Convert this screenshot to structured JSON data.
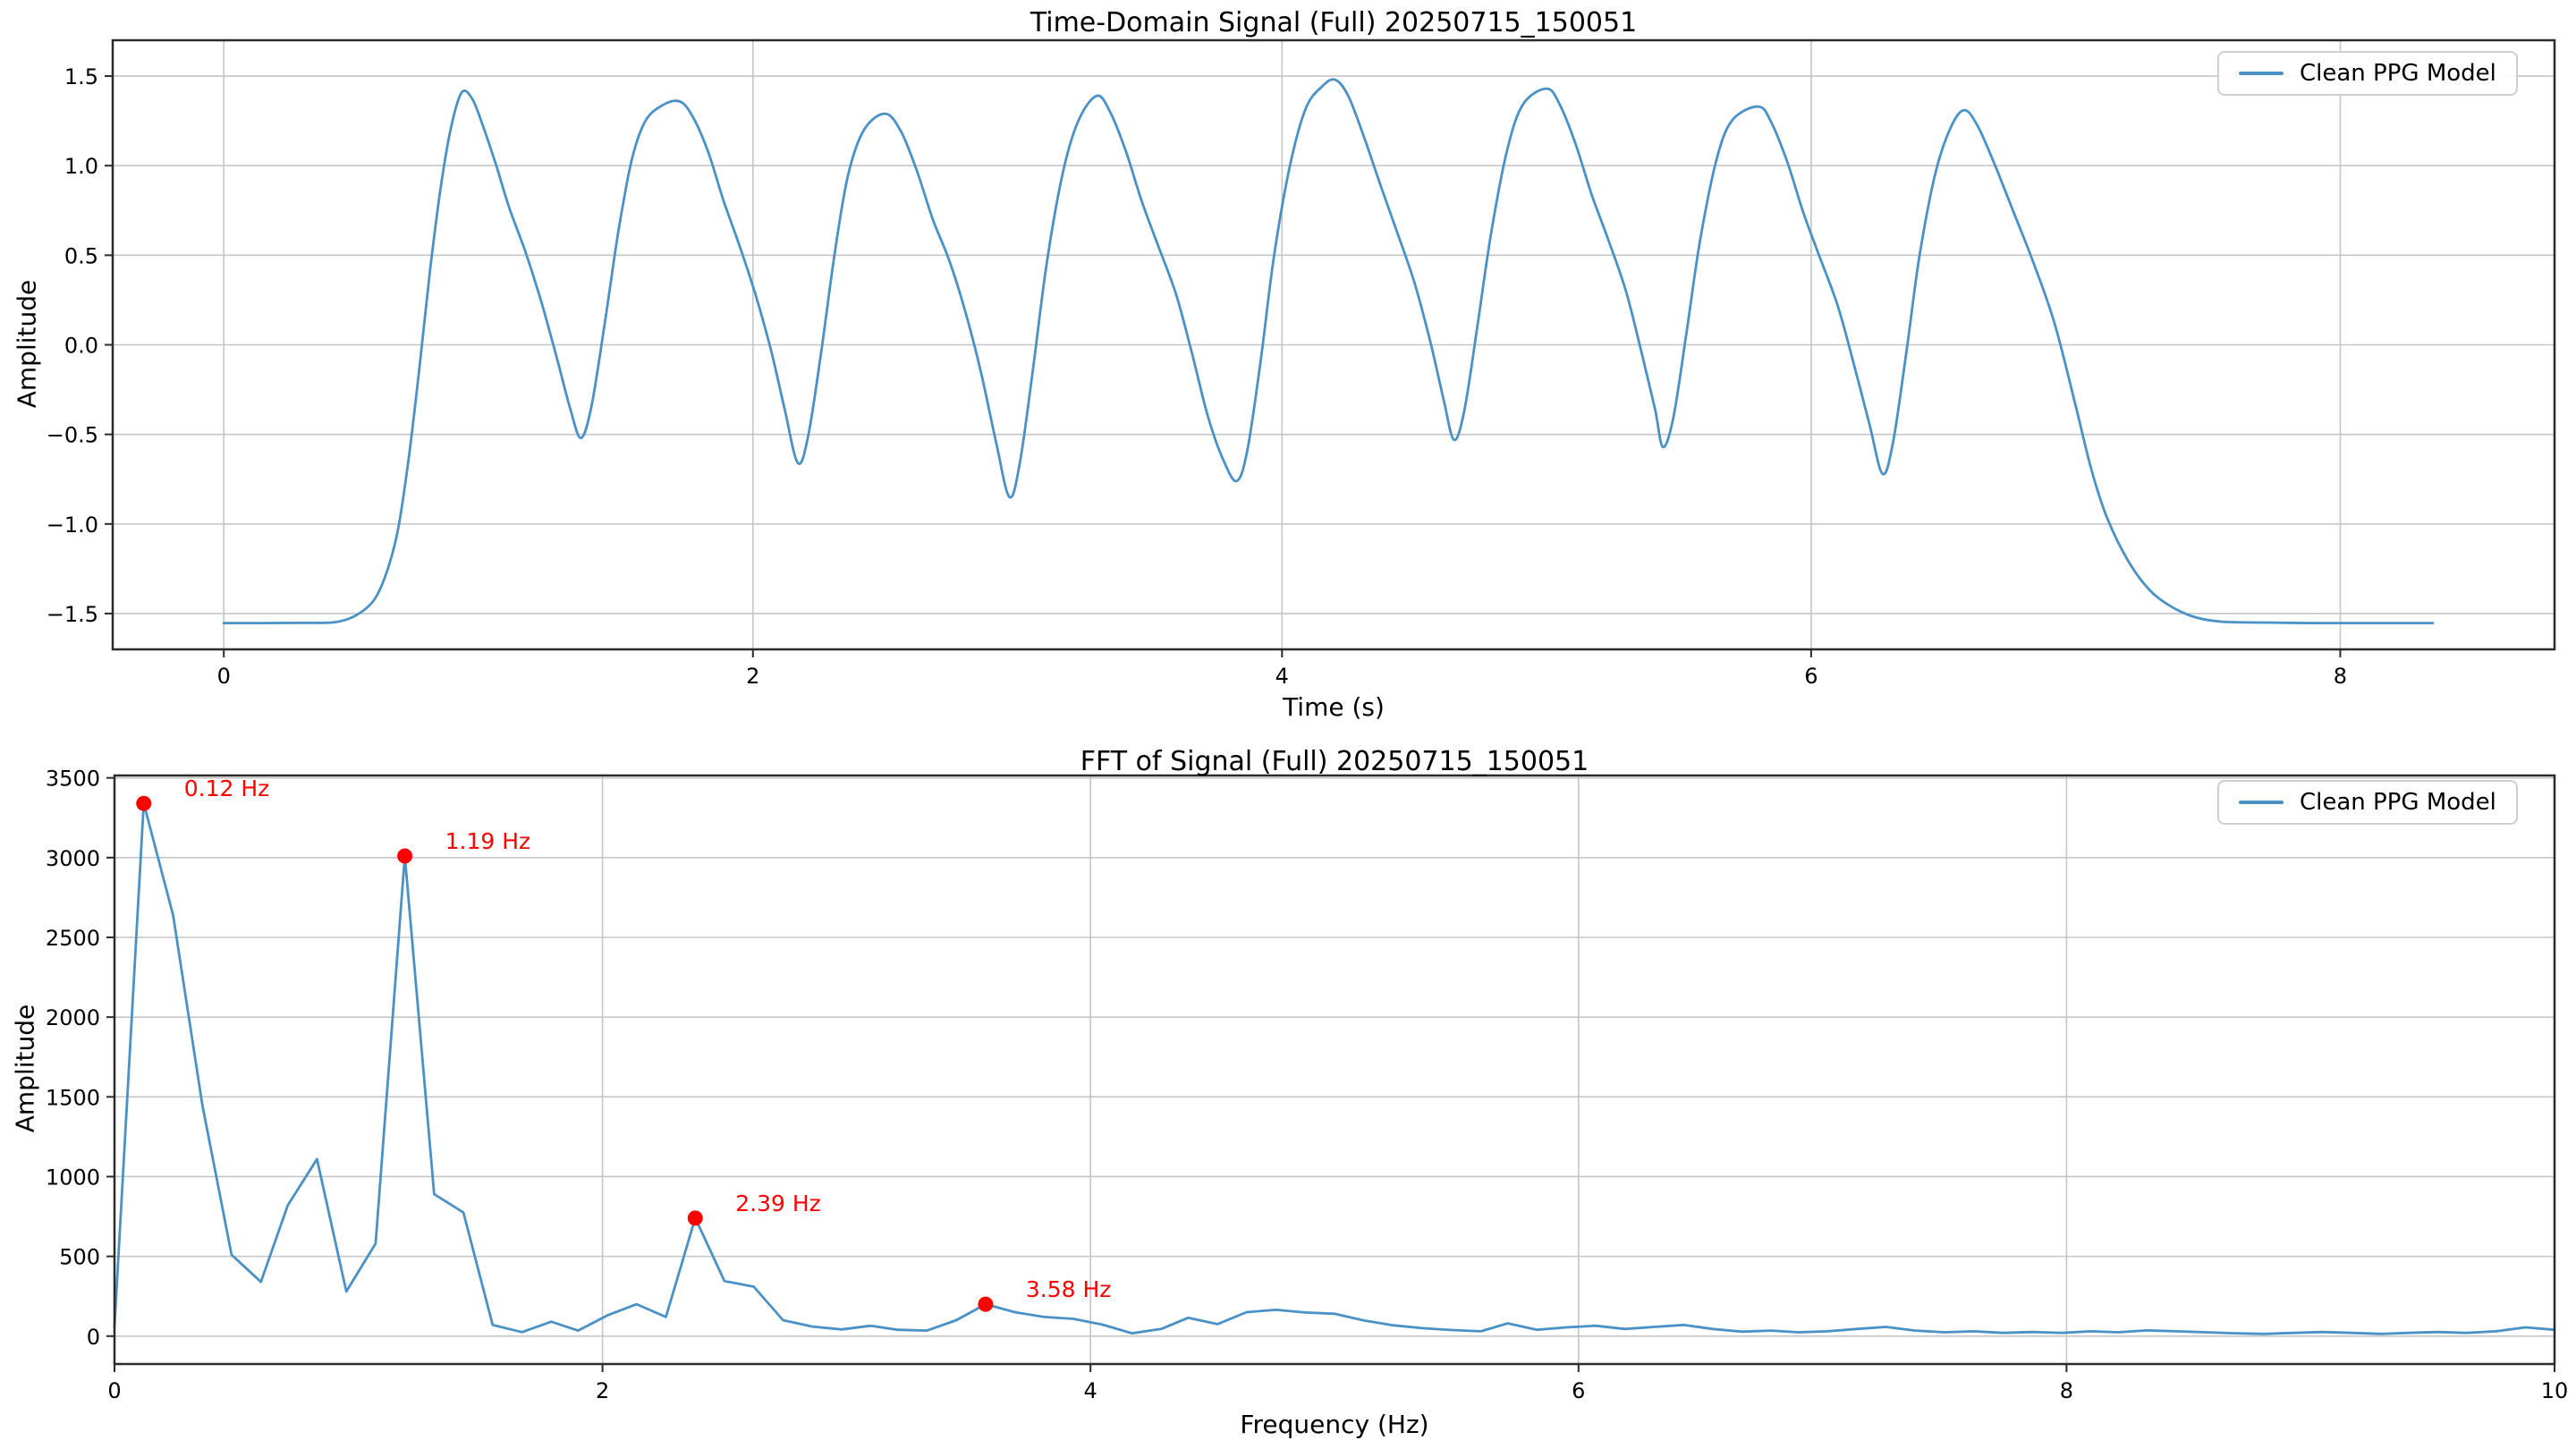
{
  "figure": {
    "background": "#ffffff",
    "line_color": "#4a91c6",
    "grid_color": "#c6c6c6",
    "spine_color": "#2b2b2b",
    "text_color": "#000000",
    "annotation_color": "#ff0000",
    "tick_fontsize": 24,
    "legend_label": "Clean PPG Model"
  },
  "chart_data": [
    {
      "type": "line",
      "title": "Time-Domain Signal (Full) 20250715_150051",
      "xlabel": "Time (s)",
      "ylabel": "Amplitude",
      "legend": [
        "Clean PPG Model"
      ],
      "legend_position": "upper right",
      "grid": true,
      "smooth": true,
      "xlim": [
        -0.42,
        8.81
      ],
      "ylim": [
        -1.7,
        1.7
      ],
      "xticks": {
        "values": [
          0,
          2,
          4,
          6,
          8
        ],
        "labels": [
          "0",
          "2",
          "4",
          "6",
          "8"
        ]
      },
      "yticks": {
        "values": [
          -1.5,
          -1.0,
          -0.5,
          0.0,
          0.5,
          1.0,
          1.5
        ],
        "labels": [
          "−1.5",
          "−1.0",
          "−0.5",
          "0.0",
          "0.5",
          "1.0",
          "1.5"
        ]
      },
      "points": [
        [
          0.0,
          -1.553
        ],
        [
          0.15,
          -1.553
        ],
        [
          0.3,
          -1.552
        ],
        [
          0.42,
          -1.548
        ],
        [
          0.5,
          -1.51
        ],
        [
          0.57,
          -1.42
        ],
        [
          0.62,
          -1.25
        ],
        [
          0.66,
          -1.02
        ],
        [
          0.7,
          -0.62
        ],
        [
          0.74,
          -0.12
        ],
        [
          0.78,
          0.42
        ],
        [
          0.82,
          0.88
        ],
        [
          0.86,
          1.22
        ],
        [
          0.9,
          1.41
        ],
        [
          0.94,
          1.37
        ],
        [
          0.98,
          1.22
        ],
        [
          1.03,
          1.0
        ],
        [
          1.08,
          0.76
        ],
        [
          1.14,
          0.52
        ],
        [
          1.2,
          0.24
        ],
        [
          1.26,
          -0.08
        ],
        [
          1.31,
          -0.36
        ],
        [
          1.35,
          -0.52
        ],
        [
          1.39,
          -0.34
        ],
        [
          1.44,
          0.12
        ],
        [
          1.49,
          0.62
        ],
        [
          1.54,
          1.02
        ],
        [
          1.59,
          1.24
        ],
        [
          1.65,
          1.33
        ],
        [
          1.72,
          1.36
        ],
        [
          1.77,
          1.28
        ],
        [
          1.83,
          1.08
        ],
        [
          1.89,
          0.8
        ],
        [
          1.95,
          0.55
        ],
        [
          2.01,
          0.28
        ],
        [
          2.07,
          -0.04
        ],
        [
          2.12,
          -0.36
        ],
        [
          2.17,
          -0.66
        ],
        [
          2.21,
          -0.5
        ],
        [
          2.26,
          -0.02
        ],
        [
          2.31,
          0.52
        ],
        [
          2.36,
          0.95
        ],
        [
          2.42,
          1.2
        ],
        [
          2.5,
          1.29
        ],
        [
          2.56,
          1.19
        ],
        [
          2.62,
          0.97
        ],
        [
          2.68,
          0.7
        ],
        [
          2.74,
          0.48
        ],
        [
          2.8,
          0.2
        ],
        [
          2.86,
          -0.14
        ],
        [
          2.92,
          -0.55
        ],
        [
          2.97,
          -0.85
        ],
        [
          3.01,
          -0.65
        ],
        [
          3.06,
          -0.12
        ],
        [
          3.11,
          0.45
        ],
        [
          3.17,
          0.95
        ],
        [
          3.23,
          1.25
        ],
        [
          3.3,
          1.39
        ],
        [
          3.35,
          1.3
        ],
        [
          3.41,
          1.08
        ],
        [
          3.47,
          0.8
        ],
        [
          3.53,
          0.56
        ],
        [
          3.6,
          0.28
        ],
        [
          3.66,
          -0.05
        ],
        [
          3.72,
          -0.4
        ],
        [
          3.78,
          -0.65
        ],
        [
          3.83,
          -0.76
        ],
        [
          3.87,
          -0.58
        ],
        [
          3.92,
          -0.08
        ],
        [
          3.97,
          0.5
        ],
        [
          4.03,
          1.0
        ],
        [
          4.09,
          1.32
        ],
        [
          4.15,
          1.44
        ],
        [
          4.2,
          1.48
        ],
        [
          4.25,
          1.39
        ],
        [
          4.31,
          1.16
        ],
        [
          4.37,
          0.9
        ],
        [
          4.43,
          0.65
        ],
        [
          4.5,
          0.35
        ],
        [
          4.56,
          0.02
        ],
        [
          4.61,
          -0.3
        ],
        [
          4.65,
          -0.53
        ],
        [
          4.69,
          -0.36
        ],
        [
          4.74,
          0.12
        ],
        [
          4.79,
          0.62
        ],
        [
          4.85,
          1.08
        ],
        [
          4.91,
          1.34
        ],
        [
          5.0,
          1.43
        ],
        [
          5.05,
          1.34
        ],
        [
          5.11,
          1.12
        ],
        [
          5.17,
          0.84
        ],
        [
          5.23,
          0.6
        ],
        [
          5.3,
          0.3
        ],
        [
          5.36,
          -0.05
        ],
        [
          5.41,
          -0.36
        ],
        [
          5.44,
          -0.57
        ],
        [
          5.48,
          -0.4
        ],
        [
          5.53,
          0.08
        ],
        [
          5.58,
          0.58
        ],
        [
          5.64,
          1.02
        ],
        [
          5.7,
          1.25
        ],
        [
          5.8,
          1.33
        ],
        [
          5.85,
          1.24
        ],
        [
          5.91,
          1.02
        ],
        [
          5.97,
          0.74
        ],
        [
          6.03,
          0.5
        ],
        [
          6.1,
          0.22
        ],
        [
          6.16,
          -0.1
        ],
        [
          6.22,
          -0.44
        ],
        [
          6.27,
          -0.72
        ],
        [
          6.31,
          -0.54
        ],
        [
          6.36,
          -0.04
        ],
        [
          6.41,
          0.5
        ],
        [
          6.47,
          0.96
        ],
        [
          6.53,
          1.22
        ],
        [
          6.58,
          1.31
        ],
        [
          6.63,
          1.22
        ],
        [
          6.69,
          1.02
        ],
        [
          6.76,
          0.76
        ],
        [
          6.84,
          0.46
        ],
        [
          6.92,
          0.12
        ],
        [
          7.0,
          -0.34
        ],
        [
          7.06,
          -0.7
        ],
        [
          7.12,
          -0.97
        ],
        [
          7.2,
          -1.21
        ],
        [
          7.28,
          -1.37
        ],
        [
          7.36,
          -1.46
        ],
        [
          7.45,
          -1.52
        ],
        [
          7.55,
          -1.545
        ],
        [
          7.7,
          -1.55
        ],
        [
          7.9,
          -1.553
        ],
        [
          8.1,
          -1.553
        ],
        [
          8.35,
          -1.553
        ]
      ],
      "annotations": []
    },
    {
      "type": "line",
      "title": "FFT of Signal (Full) 20250715_150051",
      "xlabel": "Frequency (Hz)",
      "ylabel": "Amplitude",
      "legend": [
        "Clean PPG Model"
      ],
      "legend_position": "upper right",
      "grid": true,
      "smooth": false,
      "xlim": [
        0,
        10
      ],
      "ylim": [
        -175,
        3515
      ],
      "xticks": {
        "values": [
          0,
          2,
          4,
          6,
          8,
          10
        ],
        "labels": [
          "0",
          "2",
          "4",
          "6",
          "8",
          "10"
        ]
      },
      "yticks": {
        "values": [
          0,
          500,
          1000,
          1500,
          2000,
          2500,
          3000,
          3500
        ],
        "labels": [
          "0",
          "500",
          "1000",
          "1500",
          "2000",
          "2500",
          "3000",
          "3500"
        ]
      },
      "points": [
        [
          0.0,
          60
        ],
        [
          0.12,
          3340
        ],
        [
          0.24,
          2640
        ],
        [
          0.36,
          1450
        ],
        [
          0.48,
          510
        ],
        [
          0.6,
          340
        ],
        [
          0.71,
          820
        ],
        [
          0.83,
          1110
        ],
        [
          0.95,
          280
        ],
        [
          1.07,
          580
        ],
        [
          1.19,
          3010
        ],
        [
          1.31,
          890
        ],
        [
          1.43,
          775
        ],
        [
          1.55,
          70
        ],
        [
          1.67,
          25
        ],
        [
          1.79,
          90
        ],
        [
          1.9,
          35
        ],
        [
          2.02,
          130
        ],
        [
          2.14,
          200
        ],
        [
          2.26,
          120
        ],
        [
          2.38,
          740
        ],
        [
          2.5,
          345
        ],
        [
          2.62,
          310
        ],
        [
          2.74,
          100
        ],
        [
          2.86,
          60
        ],
        [
          2.98,
          42
        ],
        [
          3.1,
          65
        ],
        [
          3.21,
          40
        ],
        [
          3.33,
          35
        ],
        [
          3.45,
          100
        ],
        [
          3.57,
          200
        ],
        [
          3.69,
          150
        ],
        [
          3.81,
          120
        ],
        [
          3.93,
          108
        ],
        [
          4.05,
          72
        ],
        [
          4.17,
          18
        ],
        [
          4.29,
          45
        ],
        [
          4.4,
          115
        ],
        [
          4.52,
          75
        ],
        [
          4.64,
          150
        ],
        [
          4.76,
          165
        ],
        [
          4.88,
          148
        ],
        [
          5.0,
          140
        ],
        [
          5.12,
          98
        ],
        [
          5.24,
          68
        ],
        [
          5.36,
          50
        ],
        [
          5.48,
          38
        ],
        [
          5.6,
          30
        ],
        [
          5.71,
          80
        ],
        [
          5.83,
          40
        ],
        [
          5.95,
          55
        ],
        [
          6.07,
          65
        ],
        [
          6.19,
          45
        ],
        [
          6.31,
          58
        ],
        [
          6.43,
          70
        ],
        [
          6.55,
          45
        ],
        [
          6.67,
          28
        ],
        [
          6.79,
          35
        ],
        [
          6.9,
          24
        ],
        [
          7.02,
          30
        ],
        [
          7.14,
          45
        ],
        [
          7.26,
          58
        ],
        [
          7.38,
          35
        ],
        [
          7.5,
          24
        ],
        [
          7.62,
          30
        ],
        [
          7.74,
          20
        ],
        [
          7.86,
          26
        ],
        [
          7.98,
          20
        ],
        [
          8.1,
          30
        ],
        [
          8.21,
          24
        ],
        [
          8.33,
          36
        ],
        [
          8.45,
          30
        ],
        [
          8.57,
          24
        ],
        [
          8.69,
          18
        ],
        [
          8.81,
          14
        ],
        [
          8.93,
          20
        ],
        [
          9.05,
          26
        ],
        [
          9.17,
          20
        ],
        [
          9.29,
          14
        ],
        [
          9.4,
          20
        ],
        [
          9.52,
          26
        ],
        [
          9.64,
          20
        ],
        [
          9.76,
          30
        ],
        [
          9.88,
          55
        ],
        [
          10.0,
          40
        ]
      ],
      "annotations": [
        {
          "x": 0.12,
          "y": 3340,
          "label": "0.12 Hz"
        },
        {
          "x": 1.19,
          "y": 3010,
          "label": "1.19 Hz"
        },
        {
          "x": 2.38,
          "y": 740,
          "label": "2.39 Hz"
        },
        {
          "x": 3.57,
          "y": 200,
          "label": "3.58 Hz"
        }
      ]
    }
  ]
}
